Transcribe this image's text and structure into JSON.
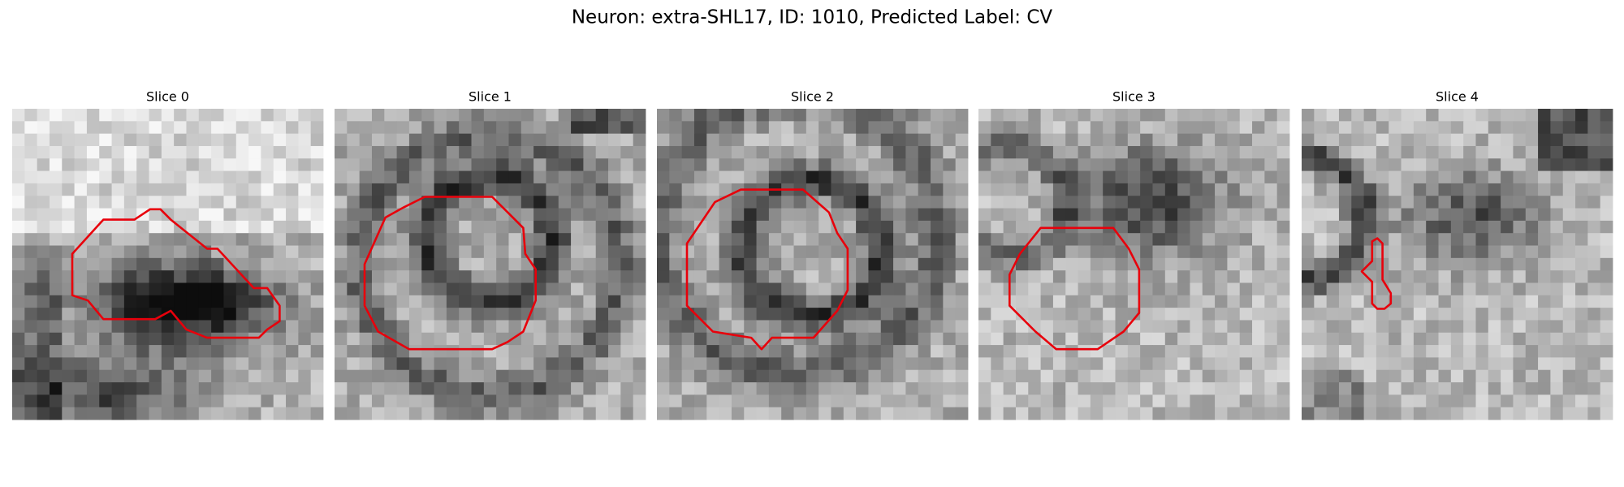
{
  "figure": {
    "title": "Neuron: extra-SHL17, ID: 1010, Predicted Label: CV",
    "panels": [
      {
        "title": "Slice 0"
      },
      {
        "title": "Slice 1"
      },
      {
        "title": "Slice 2"
      },
      {
        "title": "Slice 3"
      },
      {
        "title": "Slice 4"
      }
    ]
  }
}
